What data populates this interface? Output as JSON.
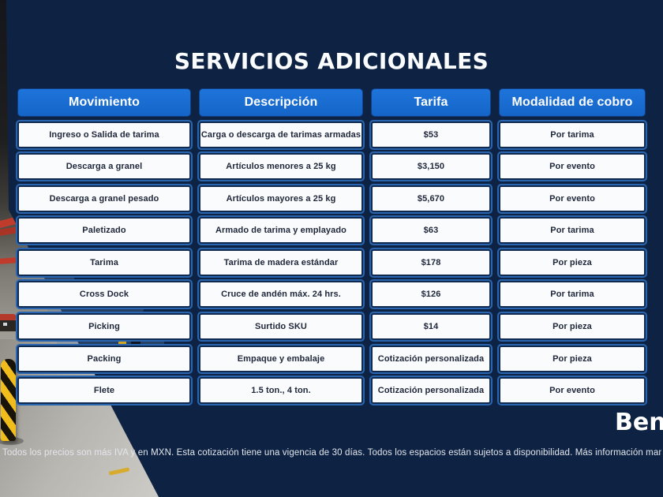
{
  "title": "SERVICIOS ADICIONALES",
  "table": {
    "headers": [
      "Movimiento",
      "Descripción",
      "Tarifa",
      "Modalidad de cobro"
    ],
    "column_keys": [
      "movimiento",
      "descripcion",
      "tarifa",
      "modalidad"
    ],
    "rows": [
      [
        "Ingreso o Salida de tarima",
        "Carga o descarga de tarimas armadas",
        "$53",
        "Por tarima"
      ],
      [
        "Descarga a granel",
        "Artículos menores a 25 kg",
        "$3,150",
        "Por evento"
      ],
      [
        "Descarga a granel pesado",
        "Artículos mayores a 25 kg",
        "$5,670",
        "Por evento"
      ],
      [
        "Paletizado",
        "Armado de tarima y emplayado",
        "$63",
        "Por tarima"
      ],
      [
        "Tarima",
        "Tarima de madera estándar",
        "$178",
        "Por pieza"
      ],
      [
        "Cross Dock",
        "Cruce de andén máx. 24 hrs.",
        "$126",
        "Por tarima"
      ],
      [
        "Picking",
        "Surtido SKU",
        "$14",
        "Por pieza"
      ],
      [
        "Packing",
        "Empaque y embalaje",
        "Cotización personalizada",
        "Por pieza"
      ],
      [
        "Flete",
        "1.5 ton., 4 ton.",
        "Cotización personalizada",
        "Por evento"
      ]
    ]
  },
  "footer": {
    "disclaimer": "Todos los precios son más IVA y en MXN. Esta cotización tiene una vigencia de 30 días. Todos los espacios están sujetos a disponibilidad. Más información mandar un correo a sales@benflex.mx",
    "brand": "Benflex"
  },
  "colors": {
    "background_navy": "#0e2343",
    "header_blue": "#1769d2",
    "cell_border_navy": "#10294e",
    "cell_rim_blue": "#2a66b0",
    "cell_background": "#fafbfd",
    "cell_text": "#1e2639",
    "title_text": "#fbfcfd",
    "bollard_yellow": "#f0bd1c",
    "rack_beam_red": "#c03b2b"
  }
}
